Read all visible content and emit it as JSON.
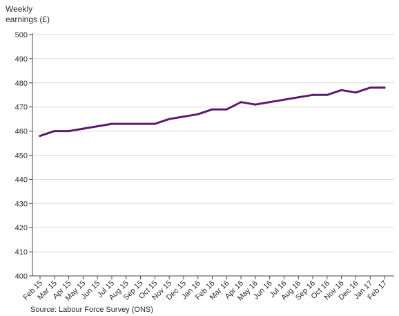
{
  "chart_data": {
    "type": "line",
    "title": "",
    "ylabel": "Weekly earnings (£)",
    "xlabel": "",
    "ylim": [
      400,
      500
    ],
    "yticks": [
      400,
      410,
      420,
      430,
      440,
      450,
      460,
      470,
      480,
      490,
      500
    ],
    "grid": "horizontal",
    "categories": [
      "Feb 15",
      "Mar 15",
      "Apr 15",
      "May 15",
      "Jun 15",
      "Jul 15",
      "Aug 15",
      "Sep 15",
      "Oct 15",
      "Nov 15",
      "Dec 15",
      "Jan 16",
      "Feb 16",
      "Mar 16",
      "Apr 16",
      "May 16",
      "Jun 16",
      "Jul 16",
      "Aug 16",
      "Sep 16",
      "Oct 16",
      "Nov 16",
      "Dec 16",
      "Jan 17",
      "Feb 17"
    ],
    "series": [
      {
        "color": "#5b1a6e",
        "values": [
          458,
          460,
          460,
          461,
          462,
          463,
          463,
          463,
          463,
          465,
          466,
          467,
          469,
          469,
          472,
          471,
          472,
          473,
          474,
          475,
          475,
          477,
          476,
          478,
          478
        ]
      }
    ],
    "source": "Source: Labour Force Survey (ONS)"
  }
}
